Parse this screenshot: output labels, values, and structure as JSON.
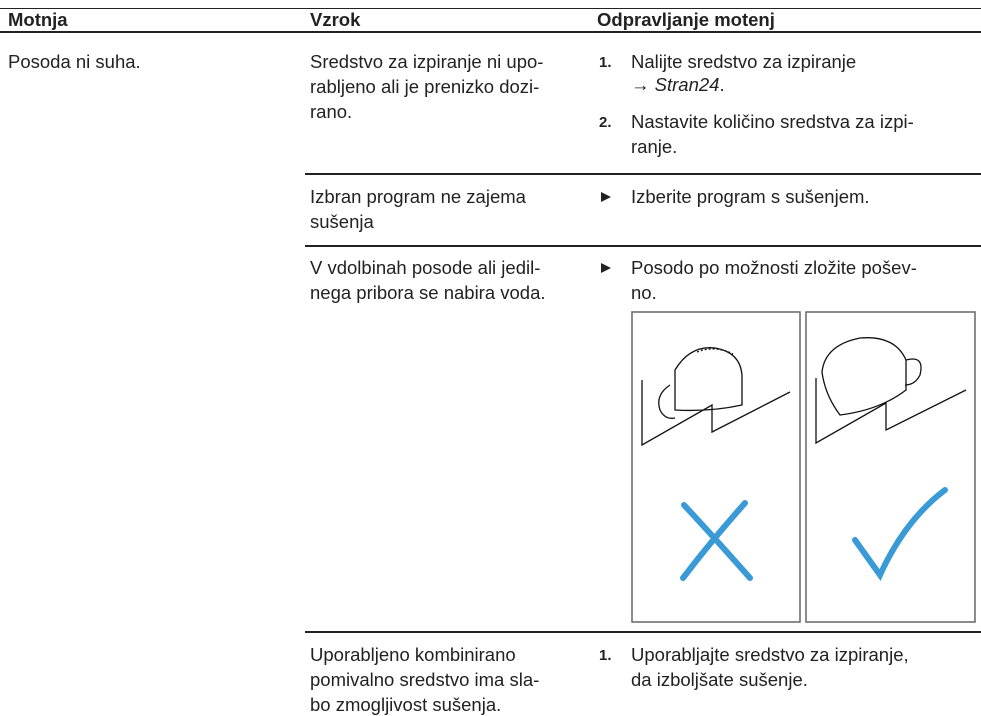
{
  "header": {
    "columns": [
      "Motnja",
      "Vzrok",
      "Odpravljanje motenj"
    ]
  },
  "table": {
    "problem": "Posoda ni suha.",
    "rows": [
      {
        "cause": [
          "Sredstvo za izpiranje ni upo-",
          "rabljeno ali je prenizko dozi-",
          "rano."
        ],
        "steps": [
          {
            "marker": "1.",
            "lines": [
              "Nalijte sredstvo za izpiranje"
            ],
            "ref": {
              "arrow": "→",
              "page": "Stran24",
              "end": "."
            }
          },
          {
            "marker": "2.",
            "lines": [
              "Nastavite količino sredstva za izpi-",
              "ranje."
            ]
          }
        ]
      },
      {
        "cause": [
          "Izbran program ne zajema",
          "sušenja"
        ],
        "steps": [
          {
            "lines": [
              "Izberite program s sušenjem."
            ]
          }
        ]
      },
      {
        "cause": [
          "V vdolbinah posode ali jedil-",
          "nega pribora se nabira voda."
        ],
        "steps": [
          {
            "lines": [
              "Posodo po možnosti zložite pošev-",
              "no."
            ]
          }
        ]
      },
      {
        "cause": [
          "Uporabljeno kombinirano",
          "pomivalno sredstvo ima sla-",
          "bo zmogljivost sušenja."
        ],
        "steps": [
          {
            "marker": "1.",
            "lines": [
              "Uporabljajte sredstvo za izpiranje,",
              "da izboljšate sušenje."
            ]
          }
        ]
      }
    ]
  }
}
